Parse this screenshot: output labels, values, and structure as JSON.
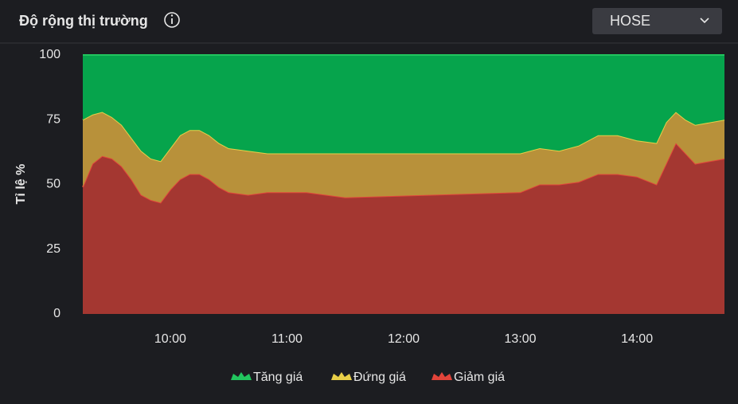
{
  "header": {
    "title": "Độ rộng thị trường",
    "exchange": "HOSE"
  },
  "chart_data": {
    "type": "stacked-area",
    "y_label": "Tỉ lệ %",
    "x": [
      "09:15",
      "09:20",
      "09:25",
      "09:30",
      "09:35",
      "09:40",
      "09:45",
      "09:50",
      "09:55",
      "10:00",
      "10:05",
      "10:10",
      "10:15",
      "10:20",
      "10:25",
      "10:30",
      "10:40",
      "10:50",
      "11:00",
      "11:10",
      "11:20",
      "11:30",
      "13:00",
      "13:10",
      "13:20",
      "13:30",
      "13:40",
      "13:50",
      "14:00",
      "14:10",
      "14:15",
      "14:20",
      "14:25",
      "14:30",
      "14:45"
    ],
    "xlim": [
      "09:15",
      "14:45"
    ],
    "xticks": [
      "10:00",
      "11:00",
      "12:00",
      "13:00",
      "14:00"
    ],
    "ylim": [
      0,
      100
    ],
    "yticks": [
      0,
      25,
      50,
      75,
      100
    ],
    "series": [
      {
        "name": "Tăng giá",
        "color": "#06a44c",
        "line_color": "#22c55e",
        "values": [
          25,
          23,
          22,
          24,
          27,
          32,
          37,
          40,
          41,
          36,
          31,
          29,
          29,
          31,
          34,
          36,
          37,
          38,
          38,
          38,
          38,
          38,
          38,
          36,
          37,
          35,
          31,
          31,
          33,
          34,
          26,
          22,
          25,
          27,
          25
        ]
      },
      {
        "name": "Đứng giá",
        "color": "#b8913a",
        "line_color": "#e8cf48",
        "values": [
          26,
          19,
          17,
          16,
          16,
          16,
          17,
          16,
          16,
          16,
          17,
          17,
          17,
          17,
          17,
          17,
          17,
          15,
          15,
          15,
          16,
          17,
          15,
          14,
          13,
          14,
          15,
          15,
          14,
          16,
          16,
          12,
          13,
          15,
          15
        ]
      },
      {
        "name": "Giảm giá",
        "color": "#a43731",
        "line_color": "#e2443a",
        "values": [
          49,
          58,
          61,
          60,
          57,
          52,
          46,
          44,
          43,
          48,
          52,
          54,
          54,
          52,
          49,
          47,
          46,
          47,
          47,
          47,
          46,
          45,
          47,
          50,
          50,
          51,
          54,
          54,
          53,
          50,
          58,
          66,
          62,
          58,
          60
        ]
      }
    ]
  }
}
